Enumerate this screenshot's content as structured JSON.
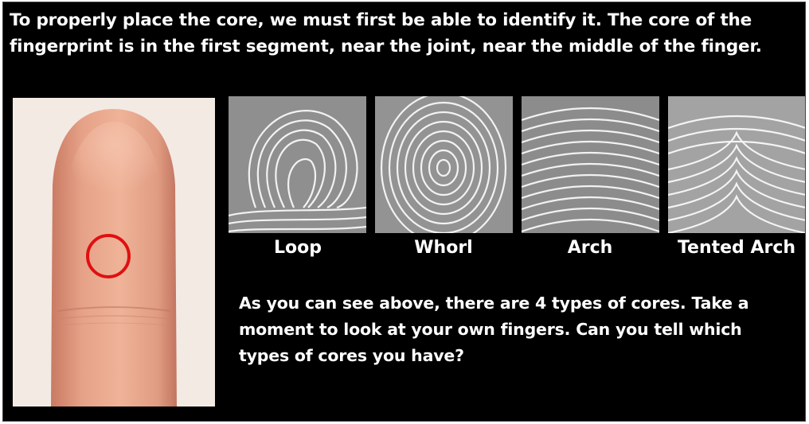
{
  "intro_text": "To properly place the core, we must first be able to identify it. The core of the fingerprint is in the first segment, near the joint, near the middle of the finger.",
  "core_types": [
    {
      "label": "Loop",
      "icon": "loop-fingerprint-image"
    },
    {
      "label": "Whorl",
      "icon": "whorl-fingerprint-image"
    },
    {
      "label": "Arch",
      "icon": "arch-fingerprint-image"
    },
    {
      "label": "Tented Arch",
      "icon": "tented-arch-fingerprint-image"
    }
  ],
  "question_text": "As you can see above, there are 4 types of cores. Take a moment to look at your own fingers. Can you tell which types of cores you have?",
  "colors": {
    "background": "#000000",
    "text": "#ffffff",
    "core_marker": "#e01010",
    "skin": "#e8a88c"
  }
}
